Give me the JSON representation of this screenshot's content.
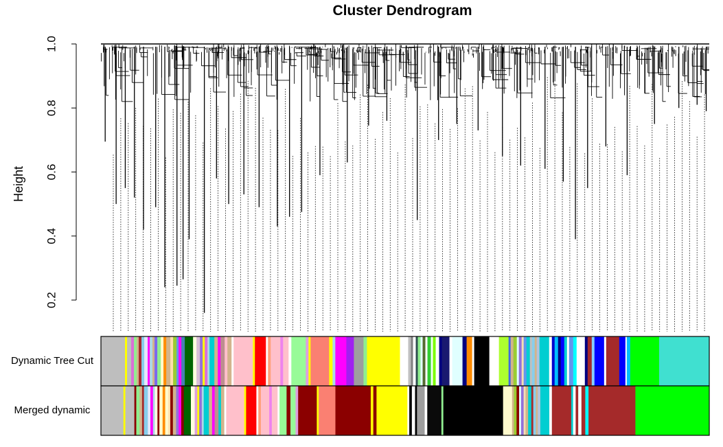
{
  "chart_data": {
    "type": "dendrogram",
    "title": "Cluster Dendrogram",
    "xlabel": "",
    "ylabel": "Height",
    "ylim": [
      0.1,
      1.0
    ],
    "yticks": [
      0.2,
      0.4,
      0.6,
      0.8,
      1.0
    ],
    "ytick_labels": [
      "0.2",
      "0.4",
      "0.6",
      "0.8",
      "1.0"
    ],
    "grid": false,
    "branches": [
      {
        "x": 0.007,
        "h": 0.695
      },
      {
        "x": 0.025,
        "h": 0.5
      },
      {
        "x": 0.04,
        "h": 0.55
      },
      {
        "x": 0.055,
        "h": 0.52
      },
      {
        "x": 0.07,
        "h": 0.42
      },
      {
        "x": 0.09,
        "h": 0.49
      },
      {
        "x": 0.105,
        "h": 0.24
      },
      {
        "x": 0.125,
        "h": 0.245
      },
      {
        "x": 0.135,
        "h": 0.265
      },
      {
        "x": 0.145,
        "h": 0.39
      },
      {
        "x": 0.17,
        "h": 0.16
      },
      {
        "x": 0.19,
        "h": 0.58
      },
      {
        "x": 0.21,
        "h": 0.5
      },
      {
        "x": 0.235,
        "h": 0.53
      },
      {
        "x": 0.26,
        "h": 0.49
      },
      {
        "x": 0.29,
        "h": 0.43
      },
      {
        "x": 0.31,
        "h": 0.46
      },
      {
        "x": 0.33,
        "h": 0.475
      },
      {
        "x": 0.36,
        "h": 0.59
      },
      {
        "x": 0.405,
        "h": 0.63
      },
      {
        "x": 0.44,
        "h": 0.745
      },
      {
        "x": 0.47,
        "h": 0.76
      },
      {
        "x": 0.52,
        "h": 0.45
      },
      {
        "x": 0.555,
        "h": 0.7
      },
      {
        "x": 0.585,
        "h": 0.75
      },
      {
        "x": 0.62,
        "h": 0.73
      },
      {
        "x": 0.66,
        "h": 0.65
      },
      {
        "x": 0.69,
        "h": 0.62
      },
      {
        "x": 0.73,
        "h": 0.61
      },
      {
        "x": 0.76,
        "h": 0.57
      },
      {
        "x": 0.78,
        "h": 0.39
      },
      {
        "x": 0.8,
        "h": 0.55
      },
      {
        "x": 0.83,
        "h": 0.68
      },
      {
        "x": 0.865,
        "h": 0.59
      },
      {
        "x": 0.91,
        "h": 0.75
      },
      {
        "x": 0.95,
        "h": 0.8
      },
      {
        "x": 0.98,
        "h": 0.81
      },
      {
        "x": 0.995,
        "h": 0.79
      }
    ],
    "color_rows": [
      {
        "label": "Dynamic Tree Cut",
        "segments": [
          {
            "w": 3.5,
            "c": "#bebebe"
          },
          {
            "w": 0.3,
            "c": "#ffff00"
          },
          {
            "w": 0.6,
            "c": "#bebebe"
          },
          {
            "w": 0.4,
            "c": "#da70d6"
          },
          {
            "w": 0.4,
            "c": "#90ee90"
          },
          {
            "w": 0.3,
            "c": "#d2b48c"
          },
          {
            "w": 0.4,
            "c": "#a52a2a"
          },
          {
            "w": 0.4,
            "c": "#87ceeb"
          },
          {
            "w": 0.5,
            "c": "#e6e6fa"
          },
          {
            "w": 0.3,
            "c": "#ff00ff"
          },
          {
            "w": 0.4,
            "c": "#add8e6"
          },
          {
            "w": 0.3,
            "c": "#d2b48c"
          },
          {
            "w": 0.4,
            "c": "#7b68ee"
          },
          {
            "w": 0.5,
            "c": "#90ee90"
          },
          {
            "w": 0.4,
            "c": "#fffacd"
          },
          {
            "w": 0.4,
            "c": "#ff8c00"
          },
          {
            "w": 0.6,
            "c": "#d2b48c"
          },
          {
            "w": 0.4,
            "c": "#ffdead"
          },
          {
            "w": 0.5,
            "c": "#9acd32"
          },
          {
            "w": 0.3,
            "c": "#6495ed"
          },
          {
            "w": 0.4,
            "c": "#ff00ff"
          },
          {
            "w": 0.5,
            "c": "#4682b4"
          },
          {
            "w": 1.2,
            "c": "#006400"
          },
          {
            "w": 0.5,
            "c": "#ffffe0"
          },
          {
            "w": 0.5,
            "c": "#d8bfd8"
          },
          {
            "w": 0.4,
            "c": "#9370db"
          },
          {
            "w": 0.3,
            "c": "#ffff00"
          },
          {
            "w": 0.4,
            "c": "#da70d6"
          },
          {
            "w": 0.3,
            "c": "#add8e6"
          },
          {
            "w": 0.7,
            "c": "#00ced1"
          },
          {
            "w": 0.5,
            "c": "#d2b48c"
          },
          {
            "w": 0.4,
            "c": "#ff00ff"
          },
          {
            "w": 0.6,
            "c": "#bc8f8f"
          },
          {
            "w": 0.4,
            "c": "#ffc0cb"
          },
          {
            "w": 0.6,
            "c": "#d2b48c"
          },
          {
            "w": 0.3,
            "c": "#ffffff"
          },
          {
            "w": 2.8,
            "c": "#ffc0cb"
          },
          {
            "w": 0.3,
            "c": "#ffff00"
          },
          {
            "w": 1.6,
            "c": "#ff0000"
          },
          {
            "w": 0.3,
            "c": "#ffffff"
          },
          {
            "w": 0.4,
            "c": "#ffa07a"
          },
          {
            "w": 1.4,
            "c": "#ffc0cb"
          },
          {
            "w": 0.4,
            "c": "#ee82ee"
          },
          {
            "w": 0.8,
            "c": "#ffc0cb"
          },
          {
            "w": 0.4,
            "c": "#ffffff"
          },
          {
            "w": 2.1,
            "c": "#98fb98"
          },
          {
            "w": 0.4,
            "c": "#dda0dd"
          },
          {
            "w": 0.3,
            "c": "#ffff00"
          },
          {
            "w": 2.7,
            "c": "#fa8072"
          },
          {
            "w": 0.5,
            "c": "#ffff00"
          },
          {
            "w": 0.4,
            "c": "#add8e6"
          },
          {
            "w": 1.6,
            "c": "#ff00ff"
          },
          {
            "w": 1.1,
            "c": "#a020f0"
          },
          {
            "w": 1.4,
            "c": "#9e9e9e"
          },
          {
            "w": 0.5,
            "c": "#90ee90"
          },
          {
            "w": 4.8,
            "c": "#ffff00"
          },
          {
            "w": 1.2,
            "c": "#ffffff"
          },
          {
            "w": 0.4,
            "c": "#c0c0c0"
          },
          {
            "w": 0.3,
            "c": "#808080"
          },
          {
            "w": 0.4,
            "c": "#ffffff"
          },
          {
            "w": 0.3,
            "c": "#2f4f4f"
          },
          {
            "w": 0.4,
            "c": "#90ee90"
          },
          {
            "w": 0.3,
            "c": "#e0ffff"
          },
          {
            "w": 0.4,
            "c": "#556b2f"
          },
          {
            "w": 0.3,
            "c": "#ffffff"
          },
          {
            "w": 0.5,
            "c": "#32cd32"
          },
          {
            "w": 0.3,
            "c": "#f0fff0"
          },
          {
            "w": 0.4,
            "c": "#7cfc00"
          },
          {
            "w": 0.5,
            "c": "#ffffff"
          },
          {
            "w": 0.4,
            "c": "#000080"
          },
          {
            "w": 1.1,
            "c": "#191970"
          },
          {
            "w": 0.4,
            "c": "#ffffff"
          },
          {
            "w": 1.5,
            "c": "#e0ffff"
          },
          {
            "w": 0.6,
            "c": "#000080"
          },
          {
            "w": 0.8,
            "c": "#ff8c00"
          },
          {
            "w": 0.3,
            "c": "#ffffff"
          },
          {
            "w": 2.2,
            "c": "#000000"
          },
          {
            "w": 1.4,
            "c": "#ffffff"
          },
          {
            "w": 1.4,
            "c": "#adff2f"
          },
          {
            "w": 0.3,
            "c": "#4169e1"
          },
          {
            "w": 0.4,
            "c": "#d2b48c"
          },
          {
            "w": 0.5,
            "c": "#9acd32"
          },
          {
            "w": 0.3,
            "c": "#e0ffff"
          },
          {
            "w": 0.4,
            "c": "#9370db"
          },
          {
            "w": 0.3,
            "c": "#f5deb3"
          },
          {
            "w": 0.4,
            "c": "#6495ed"
          },
          {
            "w": 0.5,
            "c": "#00ced1"
          },
          {
            "w": 0.3,
            "c": "#c0c0c0"
          },
          {
            "w": 0.4,
            "c": "#87ceeb"
          },
          {
            "w": 0.3,
            "c": "#d2b48c"
          },
          {
            "w": 0.4,
            "c": "#b0c4de"
          },
          {
            "w": 1.4,
            "c": "#00ced1"
          },
          {
            "w": 0.4,
            "c": "#ffffff"
          },
          {
            "w": 0.4,
            "c": "#0000cd"
          },
          {
            "w": 0.5,
            "c": "#00bfff"
          },
          {
            "w": 0.4,
            "c": "#000080"
          },
          {
            "w": 0.5,
            "c": "#0000ff"
          },
          {
            "w": 0.4,
            "c": "#00ced1"
          },
          {
            "w": 0.3,
            "c": "#ffffff"
          },
          {
            "w": 0.6,
            "c": "#6495ed"
          },
          {
            "w": 0.5,
            "c": "#00ffff"
          },
          {
            "w": 1.2,
            "c": "#ffffff"
          },
          {
            "w": 0.4,
            "c": "#000080"
          },
          {
            "w": 0.6,
            "c": "#a52a2a"
          },
          {
            "w": 0.4,
            "c": "#87cefa"
          },
          {
            "w": 1.4,
            "c": "#0000ff"
          },
          {
            "w": 0.3,
            "c": "#ffffff"
          },
          {
            "w": 1.9,
            "c": "#a52a2a"
          },
          {
            "w": 0.9,
            "c": "#0000ff"
          },
          {
            "w": 0.2,
            "c": "#ffffff"
          },
          {
            "w": 0.5,
            "c": "#00bfff"
          },
          {
            "w": 4.2,
            "c": "#00ff00"
          },
          {
            "w": 7.3,
            "c": "#40e0d0"
          }
        ]
      },
      {
        "label": "Merged dynamic",
        "segments": [
          {
            "w": 3.5,
            "c": "#bebebe"
          },
          {
            "w": 0.3,
            "c": "#ffff00"
          },
          {
            "w": 1.4,
            "c": "#bebebe"
          },
          {
            "w": 0.3,
            "c": "#8b0000"
          },
          {
            "w": 0.5,
            "c": "#90ee90"
          },
          {
            "w": 0.4,
            "c": "#d2b48c"
          },
          {
            "w": 0.3,
            "c": "#a52a2a"
          },
          {
            "w": 0.6,
            "c": "#87ceeb"
          },
          {
            "w": 0.4,
            "c": "#e6e6fa"
          },
          {
            "w": 0.4,
            "c": "#ff00ff"
          },
          {
            "w": 0.3,
            "c": "#add8e6"
          },
          {
            "w": 0.4,
            "c": "#ffffe0"
          },
          {
            "w": 0.3,
            "c": "#8b0000"
          },
          {
            "w": 0.5,
            "c": "#fffacd"
          },
          {
            "w": 0.4,
            "c": "#ff8c00"
          },
          {
            "w": 0.5,
            "c": "#fffacd"
          },
          {
            "w": 0.3,
            "c": "#ffdead"
          },
          {
            "w": 0.4,
            "c": "#8b0000"
          },
          {
            "w": 0.5,
            "c": "#d2b48c"
          },
          {
            "w": 0.4,
            "c": "#9370db"
          },
          {
            "w": 0.4,
            "c": "#ff00ff"
          },
          {
            "w": 0.4,
            "c": "#8b0000"
          },
          {
            "w": 1.1,
            "c": "#006400"
          },
          {
            "w": 0.6,
            "c": "#ffffe0"
          },
          {
            "w": 0.4,
            "c": "#dda0dd"
          },
          {
            "w": 0.3,
            "c": "#ffff00"
          },
          {
            "w": 0.4,
            "c": "#9370db"
          },
          {
            "w": 0.3,
            "c": "#add8e6"
          },
          {
            "w": 0.8,
            "c": "#00ced1"
          },
          {
            "w": 0.5,
            "c": "#d2b48c"
          },
          {
            "w": 0.4,
            "c": "#ff00ff"
          },
          {
            "w": 0.6,
            "c": "#bc8f8f"
          },
          {
            "w": 0.4,
            "c": "#00ced1"
          },
          {
            "w": 0.5,
            "c": "#d2b48c"
          },
          {
            "w": 0.3,
            "c": "#ffffff"
          },
          {
            "w": 2.8,
            "c": "#ffc0cb"
          },
          {
            "w": 0.3,
            "c": "#ffff00"
          },
          {
            "w": 1.6,
            "c": "#ff0000"
          },
          {
            "w": 0.3,
            "c": "#ffffff"
          },
          {
            "w": 0.4,
            "c": "#ffa07a"
          },
          {
            "w": 1.3,
            "c": "#ffc0cb"
          },
          {
            "w": 0.4,
            "c": "#ee82ee"
          },
          {
            "w": 0.9,
            "c": "#ffc0cb"
          },
          {
            "w": 0.3,
            "c": "#ffffff"
          },
          {
            "w": 1.1,
            "c": "#98fb98"
          },
          {
            "w": 0.6,
            "c": "#8b0000"
          },
          {
            "w": 0.8,
            "c": "#98fb98"
          },
          {
            "w": 0.4,
            "c": "#dda0dd"
          },
          {
            "w": 2.9,
            "c": "#8b0000"
          },
          {
            "w": 0.3,
            "c": "#ffff00"
          },
          {
            "w": 2.6,
            "c": "#fa8072"
          },
          {
            "w": 0.4,
            "c": "#8b0000"
          },
          {
            "w": 5.1,
            "c": "#8b0000"
          },
          {
            "w": 0.4,
            "c": "#ffff00"
          },
          {
            "w": 0.5,
            "c": "#8b0000"
          },
          {
            "w": 4.8,
            "c": "#ffff00"
          },
          {
            "w": 0.3,
            "c": "#ffffff"
          },
          {
            "w": 0.4,
            "c": "#000000"
          },
          {
            "w": 0.5,
            "c": "#ffffff"
          },
          {
            "w": 0.3,
            "c": "#000000"
          },
          {
            "w": 1.2,
            "c": "#9e9e9e"
          },
          {
            "w": 0.4,
            "c": "#ffffff"
          },
          {
            "w": 2.2,
            "c": "#0a0a0a"
          },
          {
            "w": 0.3,
            "c": "#90ee90"
          },
          {
            "w": 9.3,
            "c": "#000000"
          },
          {
            "w": 1.4,
            "c": "#fffacd"
          },
          {
            "w": 0.3,
            "c": "#d2b48c"
          },
          {
            "w": 0.4,
            "c": "#9acd32"
          },
          {
            "w": 0.4,
            "c": "#8b0000"
          },
          {
            "w": 0.3,
            "c": "#e0ffff"
          },
          {
            "w": 0.4,
            "c": "#9370db"
          },
          {
            "w": 0.3,
            "c": "#f5deb3"
          },
          {
            "w": 0.4,
            "c": "#d2b48c"
          },
          {
            "w": 0.5,
            "c": "#00ced1"
          },
          {
            "w": 0.3,
            "c": "#a52a2a"
          },
          {
            "w": 0.4,
            "c": "#87ceeb"
          },
          {
            "w": 0.3,
            "c": "#d2b48c"
          },
          {
            "w": 0.4,
            "c": "#b0c4de"
          },
          {
            "w": 1.4,
            "c": "#00ced1"
          },
          {
            "w": 0.4,
            "c": "#ffffff"
          },
          {
            "w": 3.0,
            "c": "#a52a2a"
          },
          {
            "w": 0.3,
            "c": "#00ced1"
          },
          {
            "w": 0.4,
            "c": "#ffffff"
          },
          {
            "w": 0.4,
            "c": "#a52a2a"
          },
          {
            "w": 0.5,
            "c": "#ffffff"
          },
          {
            "w": 0.6,
            "c": "#a52a2a"
          },
          {
            "w": 0.5,
            "c": "#00ffff"
          },
          {
            "w": 7.3,
            "c": "#a52a2a"
          },
          {
            "w": 11.5,
            "c": "#00ff00"
          }
        ]
      }
    ]
  }
}
